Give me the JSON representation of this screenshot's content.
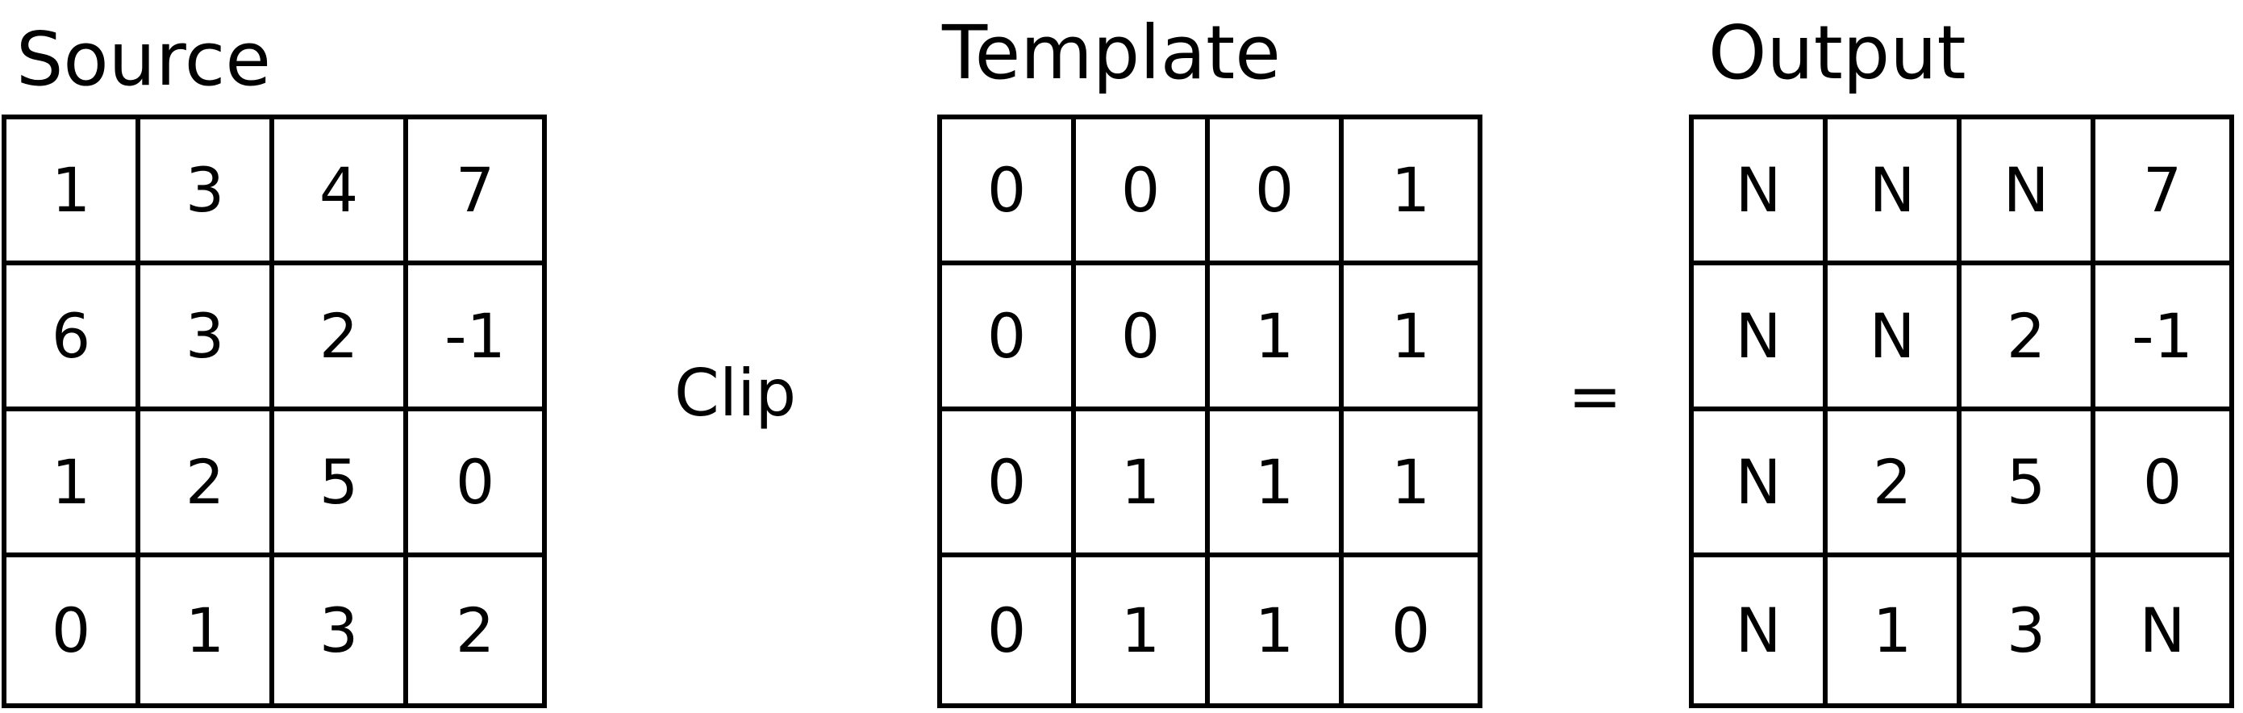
{
  "source": {
    "title": "Source",
    "rows": [
      [
        "1",
        "3",
        "4",
        "7"
      ],
      [
        "6",
        "3",
        "2",
        "-1"
      ],
      [
        "1",
        "2",
        "5",
        "0"
      ],
      [
        "0",
        "1",
        "3",
        "2"
      ]
    ]
  },
  "operator": "Clip",
  "template": {
    "title": "Template",
    "rows": [
      [
        "0",
        "0",
        "0",
        "1"
      ],
      [
        "0",
        "0",
        "1",
        "1"
      ],
      [
        "0",
        "1",
        "1",
        "1"
      ],
      [
        "0",
        "1",
        "1",
        "0"
      ]
    ]
  },
  "equals": "=",
  "output": {
    "title": "Output",
    "rows": [
      [
        "N",
        "N",
        "N",
        "7"
      ],
      [
        "N",
        "N",
        "2",
        "-1"
      ],
      [
        "N",
        "2",
        "5",
        "0"
      ],
      [
        "N",
        "1",
        "3",
        "N"
      ]
    ]
  }
}
